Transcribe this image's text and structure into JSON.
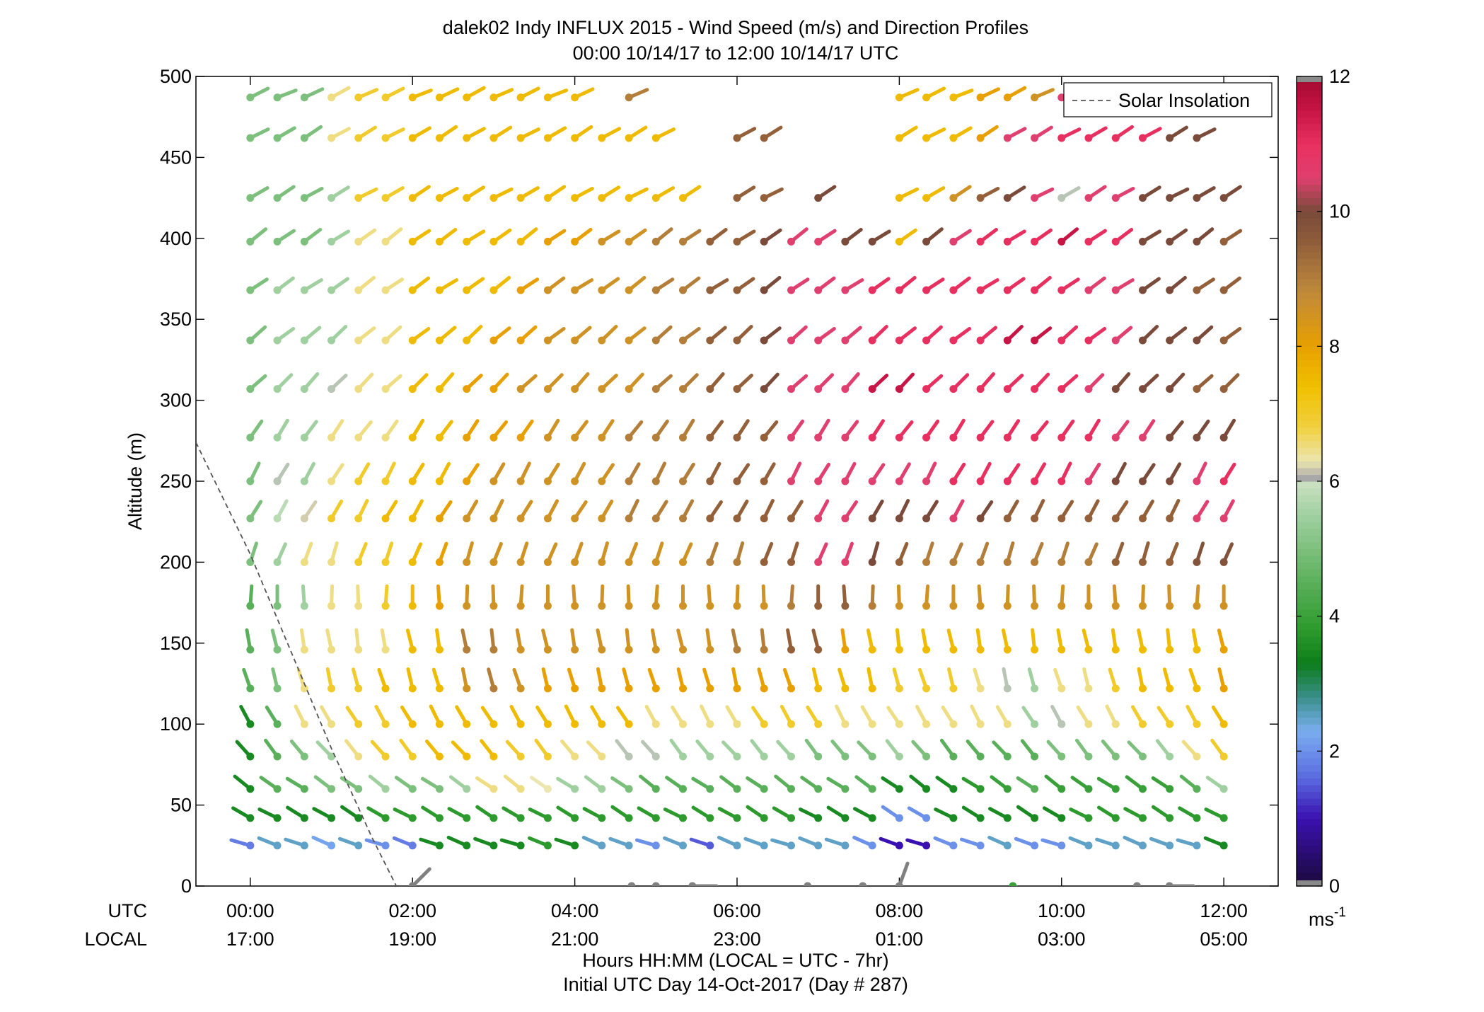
{
  "chart_data": {
    "type": "wind-profile",
    "title": "dalek02 Indy INFLUX 2015 - Wind Speed (m/s) and Direction Profiles",
    "subtitle": "00:00 10/14/17 to 12:00 10/14/17  UTC",
    "ylabel": "Altitude (m)",
    "xlabel": "Hours HH:MM  (LOCAL = UTC - 7hr)",
    "xlabel2": "Initial UTC Day 14-Oct-2017 (Day # 287)",
    "x_row_labels": [
      "UTC",
      "LOCAL"
    ],
    "xlim_hours": [
      -0.67,
      12.67
    ],
    "ylim": [
      0,
      500
    ],
    "y_ticks": [
      "0",
      "50",
      "100",
      "150",
      "200",
      "250",
      "300",
      "350",
      "400",
      "450",
      "500"
    ],
    "x_ticks_utc": [
      "00:00",
      "02:00",
      "04:00",
      "06:00",
      "08:00",
      "10:00",
      "12:00"
    ],
    "x_ticks_local": [
      "17:00",
      "19:00",
      "21:00",
      "23:00",
      "01:00",
      "03:00",
      "05:00"
    ],
    "legend": {
      "entry": "Solar Insolation",
      "position": "top-right"
    },
    "colorbar": {
      "min": 0,
      "max": 12,
      "ticks": [
        "0",
        "2",
        "4",
        "6",
        "8",
        "10",
        "12"
      ],
      "unit": "ms",
      "unit_exp": "-1"
    },
    "solar_insolation": {
      "x_hours": [
        -0.67,
        0,
        0.5,
        1.0,
        1.5,
        1.8
      ],
      "y": [
        274,
        205,
        145,
        85,
        30,
        0
      ]
    },
    "altitudes": [
      25,
      42,
      60,
      80,
      100,
      122,
      146,
      173,
      200,
      227,
      250,
      277,
      307,
      337,
      368,
      398,
      425,
      462,
      487
    ],
    "times_hours": [
      0,
      0.333,
      0.667,
      1.0,
      1.333,
      1.667,
      2.0,
      2.333,
      2.667,
      3.0,
      3.333,
      3.667,
      4.0,
      4.333,
      4.667,
      5.0,
      5.333,
      5.667,
      6.0,
      6.333,
      6.667,
      7.0,
      7.333,
      7.667,
      8.0,
      8.333,
      8.667,
      9.0,
      9.333,
      9.667,
      10.0,
      10.333,
      10.667,
      11.0,
      11.333,
      11.667,
      12.0
    ],
    "direction_deg_by_row": [
      110,
      120,
      125,
      140,
      150,
      165,
      170,
      180,
      200,
      210,
      210,
      215,
      225,
      230,
      235,
      235,
      240,
      240,
      245
    ],
    "speed_by_row_and_time": [
      [
        1.8,
        2.5,
        2.5,
        2.2,
        2.5,
        2.0,
        1.8,
        3.5,
        3.5,
        3.5,
        3.5,
        3.8,
        3.5,
        2.5,
        2.5,
        2.0,
        2.5,
        1.5,
        2.5,
        2.5,
        2.5,
        2.5,
        2.5,
        2.0,
        1.0,
        1.0,
        2.0,
        2.0,
        2.5,
        2.0,
        2.0,
        2.5,
        2.5,
        2.5,
        2.5,
        2.5,
        3.5
      ],
      [
        3.5,
        3.5,
        3.5,
        3.5,
        3.5,
        3.8,
        3.8,
        3.8,
        3.8,
        3.8,
        3.8,
        3.8,
        3.8,
        3.8,
        3.8,
        3.8,
        3.8,
        3.8,
        3.8,
        3.8,
        3.8,
        3.5,
        3.5,
        3.5,
        2.0,
        2.0,
        3.5,
        3.5,
        3.5,
        3.5,
        3.5,
        3.8,
        3.8,
        3.8,
        3.8,
        3.8,
        3.8
      ],
      [
        3.5,
        4.5,
        4.5,
        5.0,
        5.0,
        5.5,
        5.0,
        5.0,
        5.5,
        6.5,
        6.5,
        6.3,
        5.5,
        5.5,
        5.0,
        4.5,
        4.5,
        4.5,
        4.5,
        4.5,
        4.5,
        4.5,
        4.5,
        4.5,
        3.5,
        3.5,
        3.5,
        3.8,
        4.0,
        4.5,
        4.0,
        4.0,
        4.0,
        4.0,
        4.0,
        4.5,
        5.5
      ],
      [
        3.5,
        4.5,
        5.0,
        5.5,
        6.5,
        7.0,
        7.0,
        7.5,
        7.5,
        7.5,
        7.0,
        7.0,
        6.5,
        6.5,
        6.0,
        6.0,
        5.5,
        5.5,
        5.5,
        5.5,
        5.5,
        5.0,
        5.0,
        5.0,
        5.5,
        5.0,
        4.5,
        4.5,
        4.5,
        4.5,
        5.0,
        5.0,
        5.0,
        5.0,
        5.5,
        6.5,
        7.0
      ],
      [
        3.5,
        4.5,
        6.5,
        6.5,
        7.0,
        7.0,
        7.5,
        7.5,
        7.5,
        7.5,
        7.5,
        7.5,
        7.5,
        7.5,
        7.5,
        6.5,
        6.5,
        6.5,
        6.5,
        7.0,
        7.0,
        7.0,
        6.5,
        6.5,
        6.5,
        6.5,
        6.5,
        6.5,
        6.5,
        5.5,
        6.0,
        6.5,
        6.5,
        7.0,
        7.0,
        7.0,
        7.5
      ],
      [
        4.5,
        5.0,
        6.5,
        7.0,
        7.0,
        7.5,
        7.5,
        7.5,
        8.5,
        9.0,
        8.5,
        8.0,
        8.0,
        8.0,
        8.0,
        8.0,
        8.0,
        8.0,
        8.0,
        8.0,
        8.0,
        7.5,
        7.5,
        7.5,
        7.0,
        7.0,
        7.0,
        6.5,
        6.0,
        5.5,
        6.5,
        6.5,
        7.0,
        7.5,
        7.5,
        7.5,
        8.0
      ],
      [
        4.5,
        5.0,
        6.5,
        6.5,
        6.5,
        6.5,
        7.5,
        7.5,
        9.0,
        9.0,
        8.5,
        8.5,
        8.5,
        8.5,
        8.5,
        8.5,
        8.5,
        8.5,
        9.0,
        9.0,
        9.5,
        9.5,
        8.0,
        7.5,
        7.5,
        7.5,
        7.5,
        7.5,
        7.5,
        7.5,
        7.5,
        7.5,
        7.5,
        7.5,
        7.5,
        7.5,
        8.0
      ],
      [
        4.5,
        5.0,
        5.5,
        6.5,
        6.5,
        7.0,
        7.5,
        8.0,
        8.5,
        8.5,
        8.5,
        8.5,
        8.5,
        8.5,
        8.5,
        8.5,
        8.5,
        8.5,
        8.5,
        8.5,
        9.0,
        9.5,
        9.5,
        9.0,
        8.5,
        8.5,
        8.5,
        8.5,
        8.5,
        8.5,
        8.5,
        8.5,
        8.5,
        8.5,
        8.5,
        8.5,
        8.5
      ],
      [
        5.0,
        5.5,
        6.5,
        6.5,
        7.0,
        7.0,
        7.5,
        8.0,
        8.5,
        8.5,
        8.5,
        8.5,
        8.5,
        8.5,
        8.5,
        8.5,
        8.5,
        9.0,
        9.0,
        9.5,
        9.5,
        10.5,
        10.5,
        10.0,
        9.5,
        9.0,
        9.0,
        9.0,
        9.0,
        9.0,
        9.0,
        9.0,
        9.5,
        9.5,
        9.5,
        9.8,
        9.8
      ],
      [
        5.0,
        5.8,
        6.2,
        7.0,
        7.0,
        7.5,
        7.5,
        8.0,
        8.5,
        8.5,
        8.5,
        8.5,
        8.5,
        8.5,
        9.0,
        9.0,
        9.0,
        9.5,
        9.5,
        9.5,
        9.5,
        10.5,
        10.5,
        10.0,
        10.0,
        10.0,
        10.5,
        10.0,
        9.5,
        9.5,
        9.5,
        9.5,
        9.5,
        9.5,
        9.5,
        10.5,
        10.5
      ],
      [
        5.0,
        6.0,
        5.5,
        6.5,
        7.0,
        7.0,
        7.5,
        7.5,
        8.0,
        8.5,
        8.5,
        8.5,
        8.5,
        8.5,
        9.0,
        9.0,
        9.0,
        9.5,
        9.5,
        9.5,
        10.5,
        10.5,
        10.5,
        10.5,
        10.5,
        10.5,
        11.0,
        11.0,
        11.0,
        11.0,
        11.0,
        10.5,
        10.0,
        10.0,
        10.0,
        10.5,
        11.0
      ],
      [
        5.0,
        5.5,
        5.5,
        6.5,
        6.5,
        6.5,
        7.5,
        7.5,
        8.0,
        8.0,
        8.0,
        8.5,
        8.5,
        8.5,
        9.0,
        9.0,
        9.0,
        9.5,
        9.5,
        9.5,
        10.5,
        10.5,
        10.5,
        11.0,
        11.0,
        11.0,
        11.0,
        11.0,
        11.0,
        11.0,
        11.0,
        11.0,
        10.5,
        10.5,
        10.0,
        10.0,
        10.0
      ],
      [
        5.0,
        5.5,
        5.5,
        6.0,
        6.5,
        6.5,
        7.5,
        7.5,
        8.0,
        8.0,
        8.5,
        8.5,
        8.5,
        8.5,
        8.5,
        9.0,
        9.0,
        9.5,
        9.5,
        10.0,
        10.5,
        10.5,
        10.5,
        11.5,
        11.5,
        11.0,
        11.0,
        11.0,
        11.0,
        11.0,
        11.0,
        10.5,
        10.0,
        10.0,
        10.0,
        9.5,
        9.5
      ],
      [
        5.0,
        5.5,
        5.5,
        5.5,
        6.5,
        6.5,
        7.5,
        7.5,
        7.5,
        8.0,
        8.0,
        8.5,
        8.5,
        8.5,
        8.5,
        9.0,
        9.0,
        9.5,
        9.5,
        10.0,
        10.5,
        10.5,
        10.5,
        11.0,
        11.0,
        11.0,
        11.0,
        11.0,
        11.5,
        11.5,
        11.0,
        11.0,
        10.5,
        10.0,
        10.0,
        10.0,
        9.5
      ],
      [
        5.0,
        5.5,
        5.5,
        5.5,
        6.5,
        6.5,
        7.5,
        7.5,
        7.5,
        7.5,
        8.0,
        8.5,
        8.5,
        8.5,
        8.5,
        9.0,
        9.0,
        9.5,
        9.5,
        10.0,
        10.5,
        10.5,
        10.5,
        11.0,
        11.0,
        11.0,
        11.0,
        11.0,
        11.0,
        11.0,
        11.0,
        10.5,
        10.5,
        10.0,
        10.0,
        9.5,
        9.5
      ],
      [
        5.0,
        5.0,
        5.0,
        5.5,
        6.5,
        6.5,
        7.5,
        7.5,
        7.5,
        7.5,
        7.5,
        8.0,
        8.0,
        8.5,
        8.5,
        9.0,
        9.0,
        9.5,
        9.5,
        10.0,
        10.5,
        10.5,
        10.0,
        10.0,
        7.5,
        10.0,
        10.5,
        11.0,
        11.0,
        11.0,
        11.5,
        11.0,
        11.0,
        10.0,
        10.0,
        10.0,
        9.5
      ],
      [
        5.0,
        5.0,
        5.0,
        5.5,
        7.0,
        7.0,
        7.5,
        7.5,
        7.5,
        7.5,
        7.5,
        7.5,
        7.5,
        7.5,
        7.5,
        7.5,
        7.5,
        null,
        9.5,
        9.5,
        null,
        10.0,
        null,
        null,
        7.5,
        7.5,
        8.5,
        9.5,
        10.0,
        10.5,
        6.0,
        10.5,
        10.5,
        10.0,
        10.0,
        10.0,
        10.0
      ],
      [
        5.0,
        5.0,
        5.0,
        6.5,
        7.0,
        7.0,
        7.5,
        7.5,
        7.5,
        7.5,
        7.5,
        7.5,
        7.5,
        7.5,
        7.5,
        7.5,
        null,
        null,
        9.5,
        9.5,
        null,
        null,
        null,
        null,
        7.5,
        7.5,
        7.5,
        8.0,
        10.5,
        10.5,
        11.0,
        11.0,
        11.0,
        11.0,
        10.0,
        10.0,
        null
      ],
      [
        5.0,
        5.0,
        5.0,
        6.5,
        7.0,
        7.0,
        7.5,
        7.5,
        7.5,
        7.5,
        7.5,
        7.5,
        7.5,
        null,
        9.0,
        null,
        null,
        null,
        null,
        null,
        null,
        null,
        null,
        null,
        7.5,
        7.5,
        7.5,
        8.0,
        8.0,
        8.5,
        10.5,
        null,
        null,
        null,
        null,
        null,
        null
      ]
    ],
    "near_surface_points": [
      {
        "time_hours": 2.0,
        "speed": 6.0,
        "dir": 225
      },
      {
        "time_hours": 4.7,
        "speed": 6.0,
        "dir": 300
      },
      {
        "time_hours": 5.0,
        "speed": 6.0,
        "dir": 300
      },
      {
        "time_hours": 5.45,
        "speed": 6.0,
        "dir": 270
      },
      {
        "time_hours": 6.87,
        "speed": 6.0,
        "dir": 305
      },
      {
        "time_hours": 7.55,
        "speed": 6.0,
        "dir": 325
      },
      {
        "time_hours": 8.0,
        "speed": 6.0,
        "dir": 200
      },
      {
        "time_hours": 9.4,
        "speed": 4.0,
        "dir": 290
      },
      {
        "time_hours": 10.93,
        "speed": 6.0,
        "dir": 300
      },
      {
        "time_hours": 11.33,
        "speed": 6.0,
        "dir": 270
      }
    ]
  }
}
